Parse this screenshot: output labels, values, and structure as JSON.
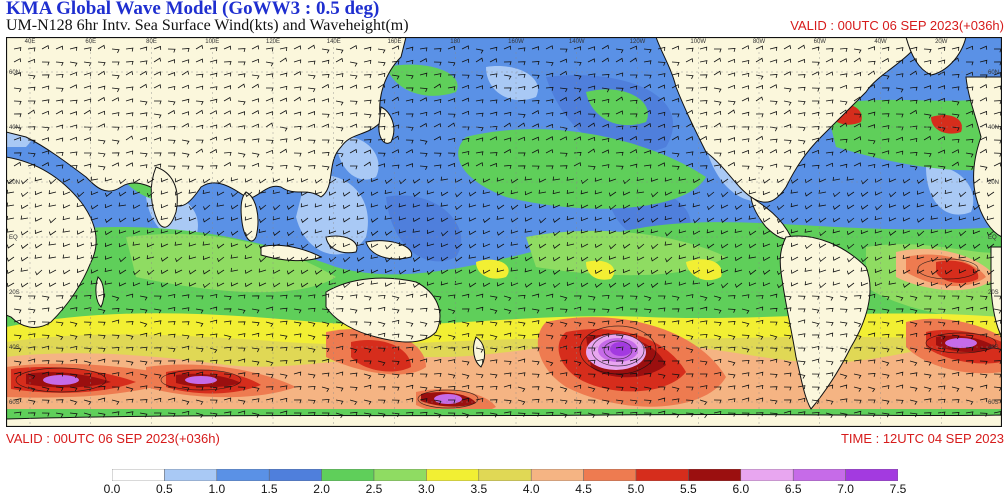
{
  "header": {
    "title": "KMA  Global Wave Model (GoWW3 : 0.5 deg)",
    "subtitle": "UM-N128  6hr Intv. Sea Surface Wind(kts) and Waveheight(m)",
    "valid_top": "VALID : 00UTC 06 SEP 2023(+036h)"
  },
  "footer": {
    "valid": "VALID : 00UTC 06 SEP 2023(+036h)",
    "time": "TIME : 12UTC 04 SEP 2023"
  },
  "map": {
    "lon_labels": [
      "40E",
      "60E",
      "80E",
      "100E",
      "120E",
      "140E",
      "160E",
      "180",
      "160W",
      "140W",
      "120W",
      "100W",
      "80W",
      "60W",
      "40W",
      "20W"
    ],
    "lat_labels": [
      "60N",
      "40N",
      "20N",
      "EQ",
      "20S",
      "40S",
      "60S"
    ],
    "land_color": "#fbf7dc",
    "wave_classes": [
      {
        "min": 0.0,
        "color": "#ffffff"
      },
      {
        "min": 0.5,
        "color": "#a9c9f5"
      },
      {
        "min": 1.0,
        "color": "#5a91e6"
      },
      {
        "min": 1.5,
        "color": "#4f7fdc"
      },
      {
        "min": 2.0,
        "color": "#5fcf5a"
      },
      {
        "min": 2.5,
        "color": "#8fdc62"
      },
      {
        "min": 3.0,
        "color": "#f2ef33"
      },
      {
        "min": 3.5,
        "color": "#e0d855"
      },
      {
        "min": 4.0,
        "color": "#f5b483"
      },
      {
        "min": 4.5,
        "color": "#ee7b50"
      },
      {
        "min": 5.0,
        "color": "#d62d1c"
      },
      {
        "min": 5.5,
        "color": "#9b0f0f"
      },
      {
        "min": 6.0,
        "color": "#e8a6f0"
      },
      {
        "min": 6.5,
        "color": "#c66be8"
      },
      {
        "min": 7.0,
        "color": "#a33ae0"
      }
    ]
  },
  "colorbar": {
    "ticks": [
      "0.0",
      "0.5",
      "1.0",
      "1.5",
      "2.0",
      "2.5",
      "3.0",
      "3.5",
      "4.0",
      "4.5",
      "5.0",
      "5.5",
      "6.0",
      "6.5",
      "7.0",
      "7.5"
    ],
    "colors": [
      "#ffffff",
      "#a9c9f5",
      "#5a91e6",
      "#4f7fdc",
      "#5fcf5a",
      "#8fdc62",
      "#f2ef33",
      "#e0d855",
      "#f5b483",
      "#ee7b50",
      "#d62d1c",
      "#9b0f0f",
      "#e8a6f0",
      "#c66be8",
      "#a33ae0"
    ]
  }
}
